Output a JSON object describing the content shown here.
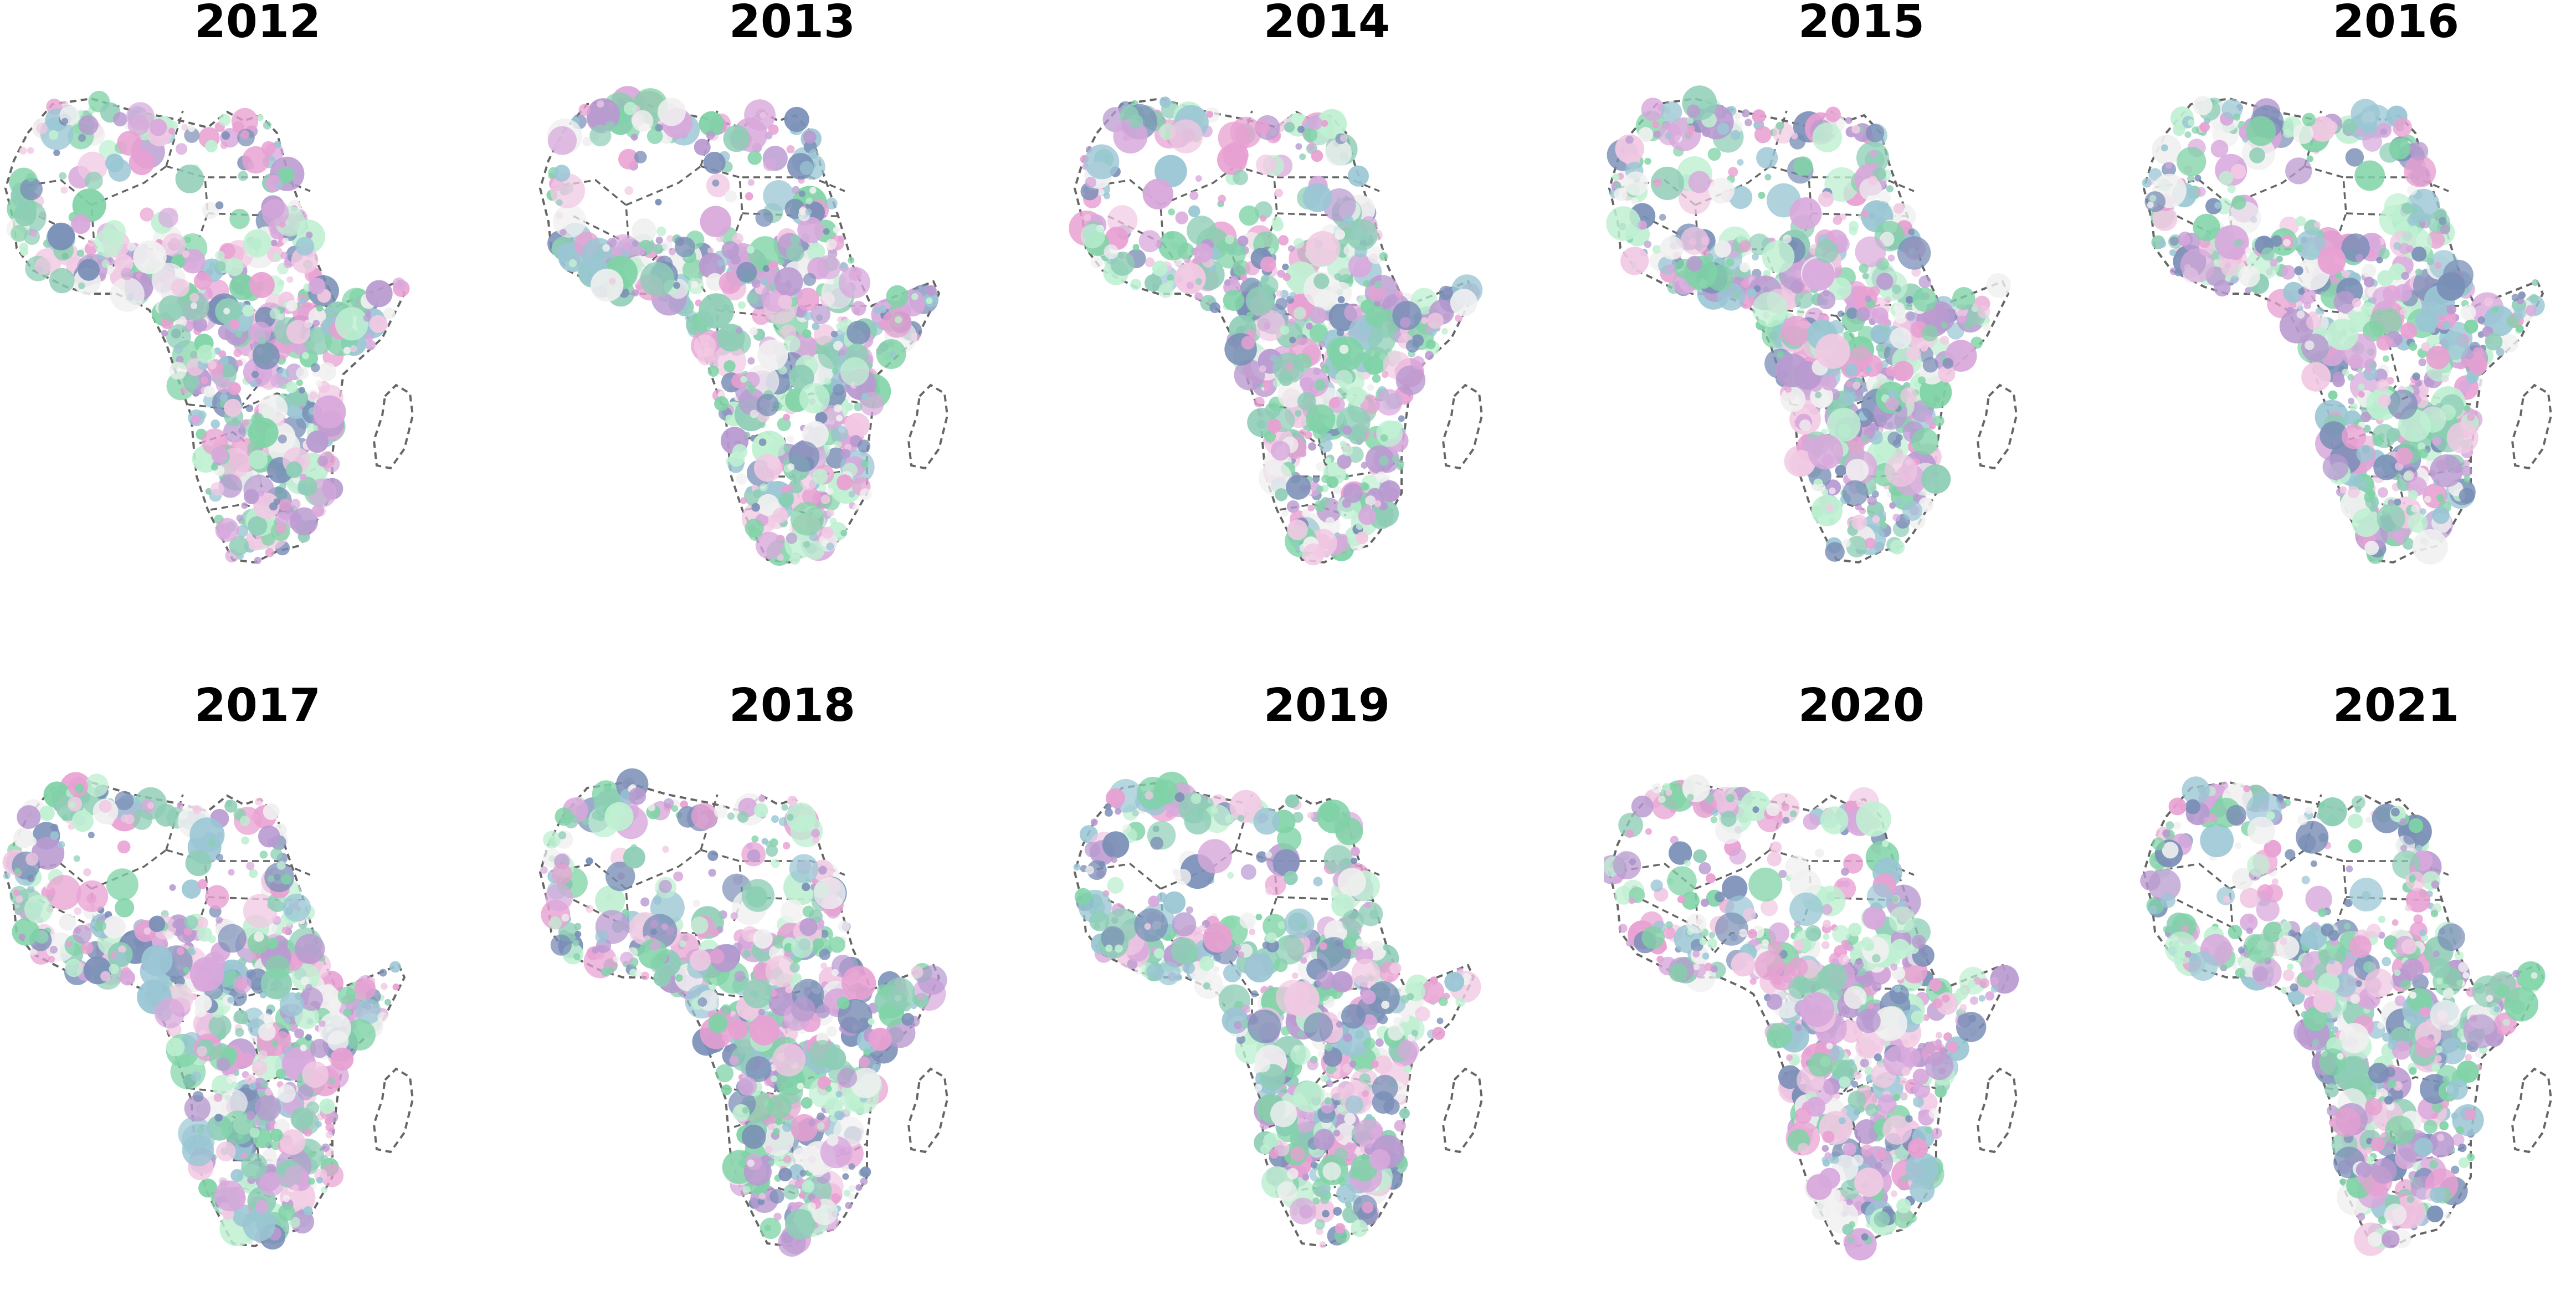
{
  "figure": {
    "panels": [
      {
        "year": "2012"
      },
      {
        "year": "2013"
      },
      {
        "year": "2014"
      },
      {
        "year": "2015"
      },
      {
        "year": "2016"
      },
      {
        "year": "2017"
      },
      {
        "year": "2018"
      },
      {
        "year": "2019"
      },
      {
        "year": "2020"
      },
      {
        "year": "2021"
      }
    ],
    "palette": [
      "#e8a0d2",
      "#d8a8dc",
      "#b99ad0",
      "#9ac6d4",
      "#7a8eb6",
      "#7fd3a6",
      "#bff0d2",
      "#f1c9e3",
      "#f0f0f0",
      "#8ecdb6"
    ],
    "border_color": "#666666",
    "border_style": "dashed",
    "marker_style": "semi-transparent circles, size varies"
  }
}
